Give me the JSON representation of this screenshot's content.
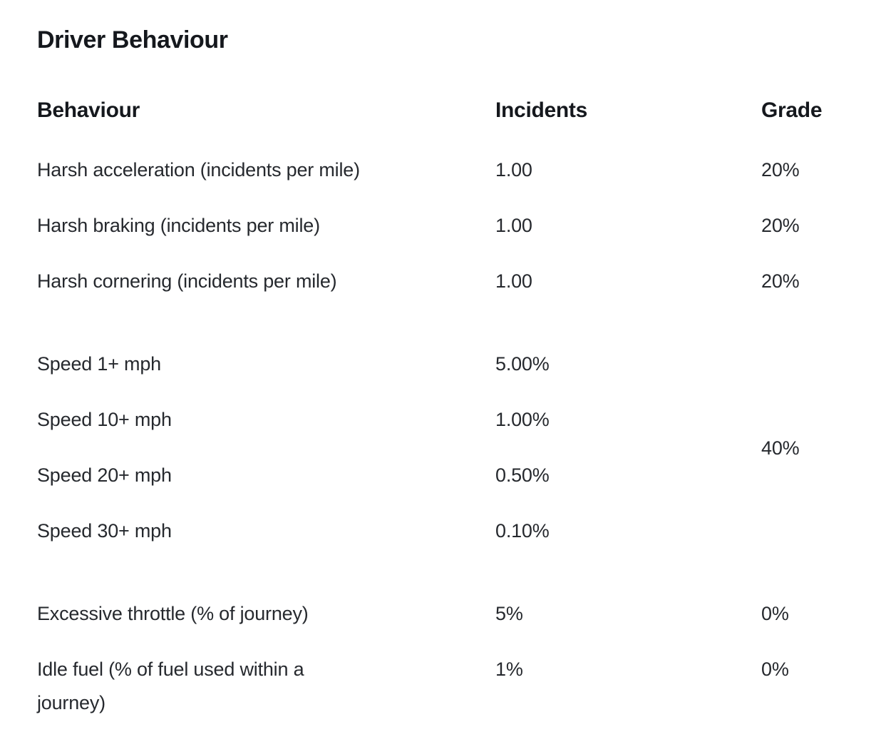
{
  "page": {
    "title": "Driver Behaviour"
  },
  "table": {
    "headers": {
      "behaviour": "Behaviour",
      "incidents": "Incidents",
      "grade": "Grade"
    },
    "groups": [
      {
        "name": "harsh-events",
        "rows": [
          {
            "behaviour": "Harsh acceleration (incidents per mile)",
            "incidents": "1.00",
            "grade": "20%"
          },
          {
            "behaviour": "Harsh braking (incidents per mile)",
            "incidents": "1.00",
            "grade": "20%"
          },
          {
            "behaviour": "Harsh cornering (incidents per mile)",
            "incidents": "1.00",
            "grade": "20%"
          }
        ]
      },
      {
        "name": "speeding",
        "shared_grade": "40%",
        "rows": [
          {
            "behaviour": "Speed 1+ mph",
            "incidents": "5.00%"
          },
          {
            "behaviour": "Speed 10+ mph",
            "incidents": "1.00%"
          },
          {
            "behaviour": "Speed 20+ mph",
            "incidents": "0.50%"
          },
          {
            "behaviour": "Speed 30+ mph",
            "incidents": "0.10%"
          }
        ]
      },
      {
        "name": "throttle-and-fuel",
        "rows": [
          {
            "behaviour": "Excessive throttle (% of journey)",
            "incidents": "5%",
            "grade": "0%"
          },
          {
            "behaviour": "Idle fuel (% of fuel used within a journey)",
            "incidents": "1%",
            "grade": "0%"
          }
        ]
      }
    ]
  },
  "colors": {
    "background": "#ffffff",
    "heading_text": "#15181d",
    "body_text": "#26292e"
  }
}
